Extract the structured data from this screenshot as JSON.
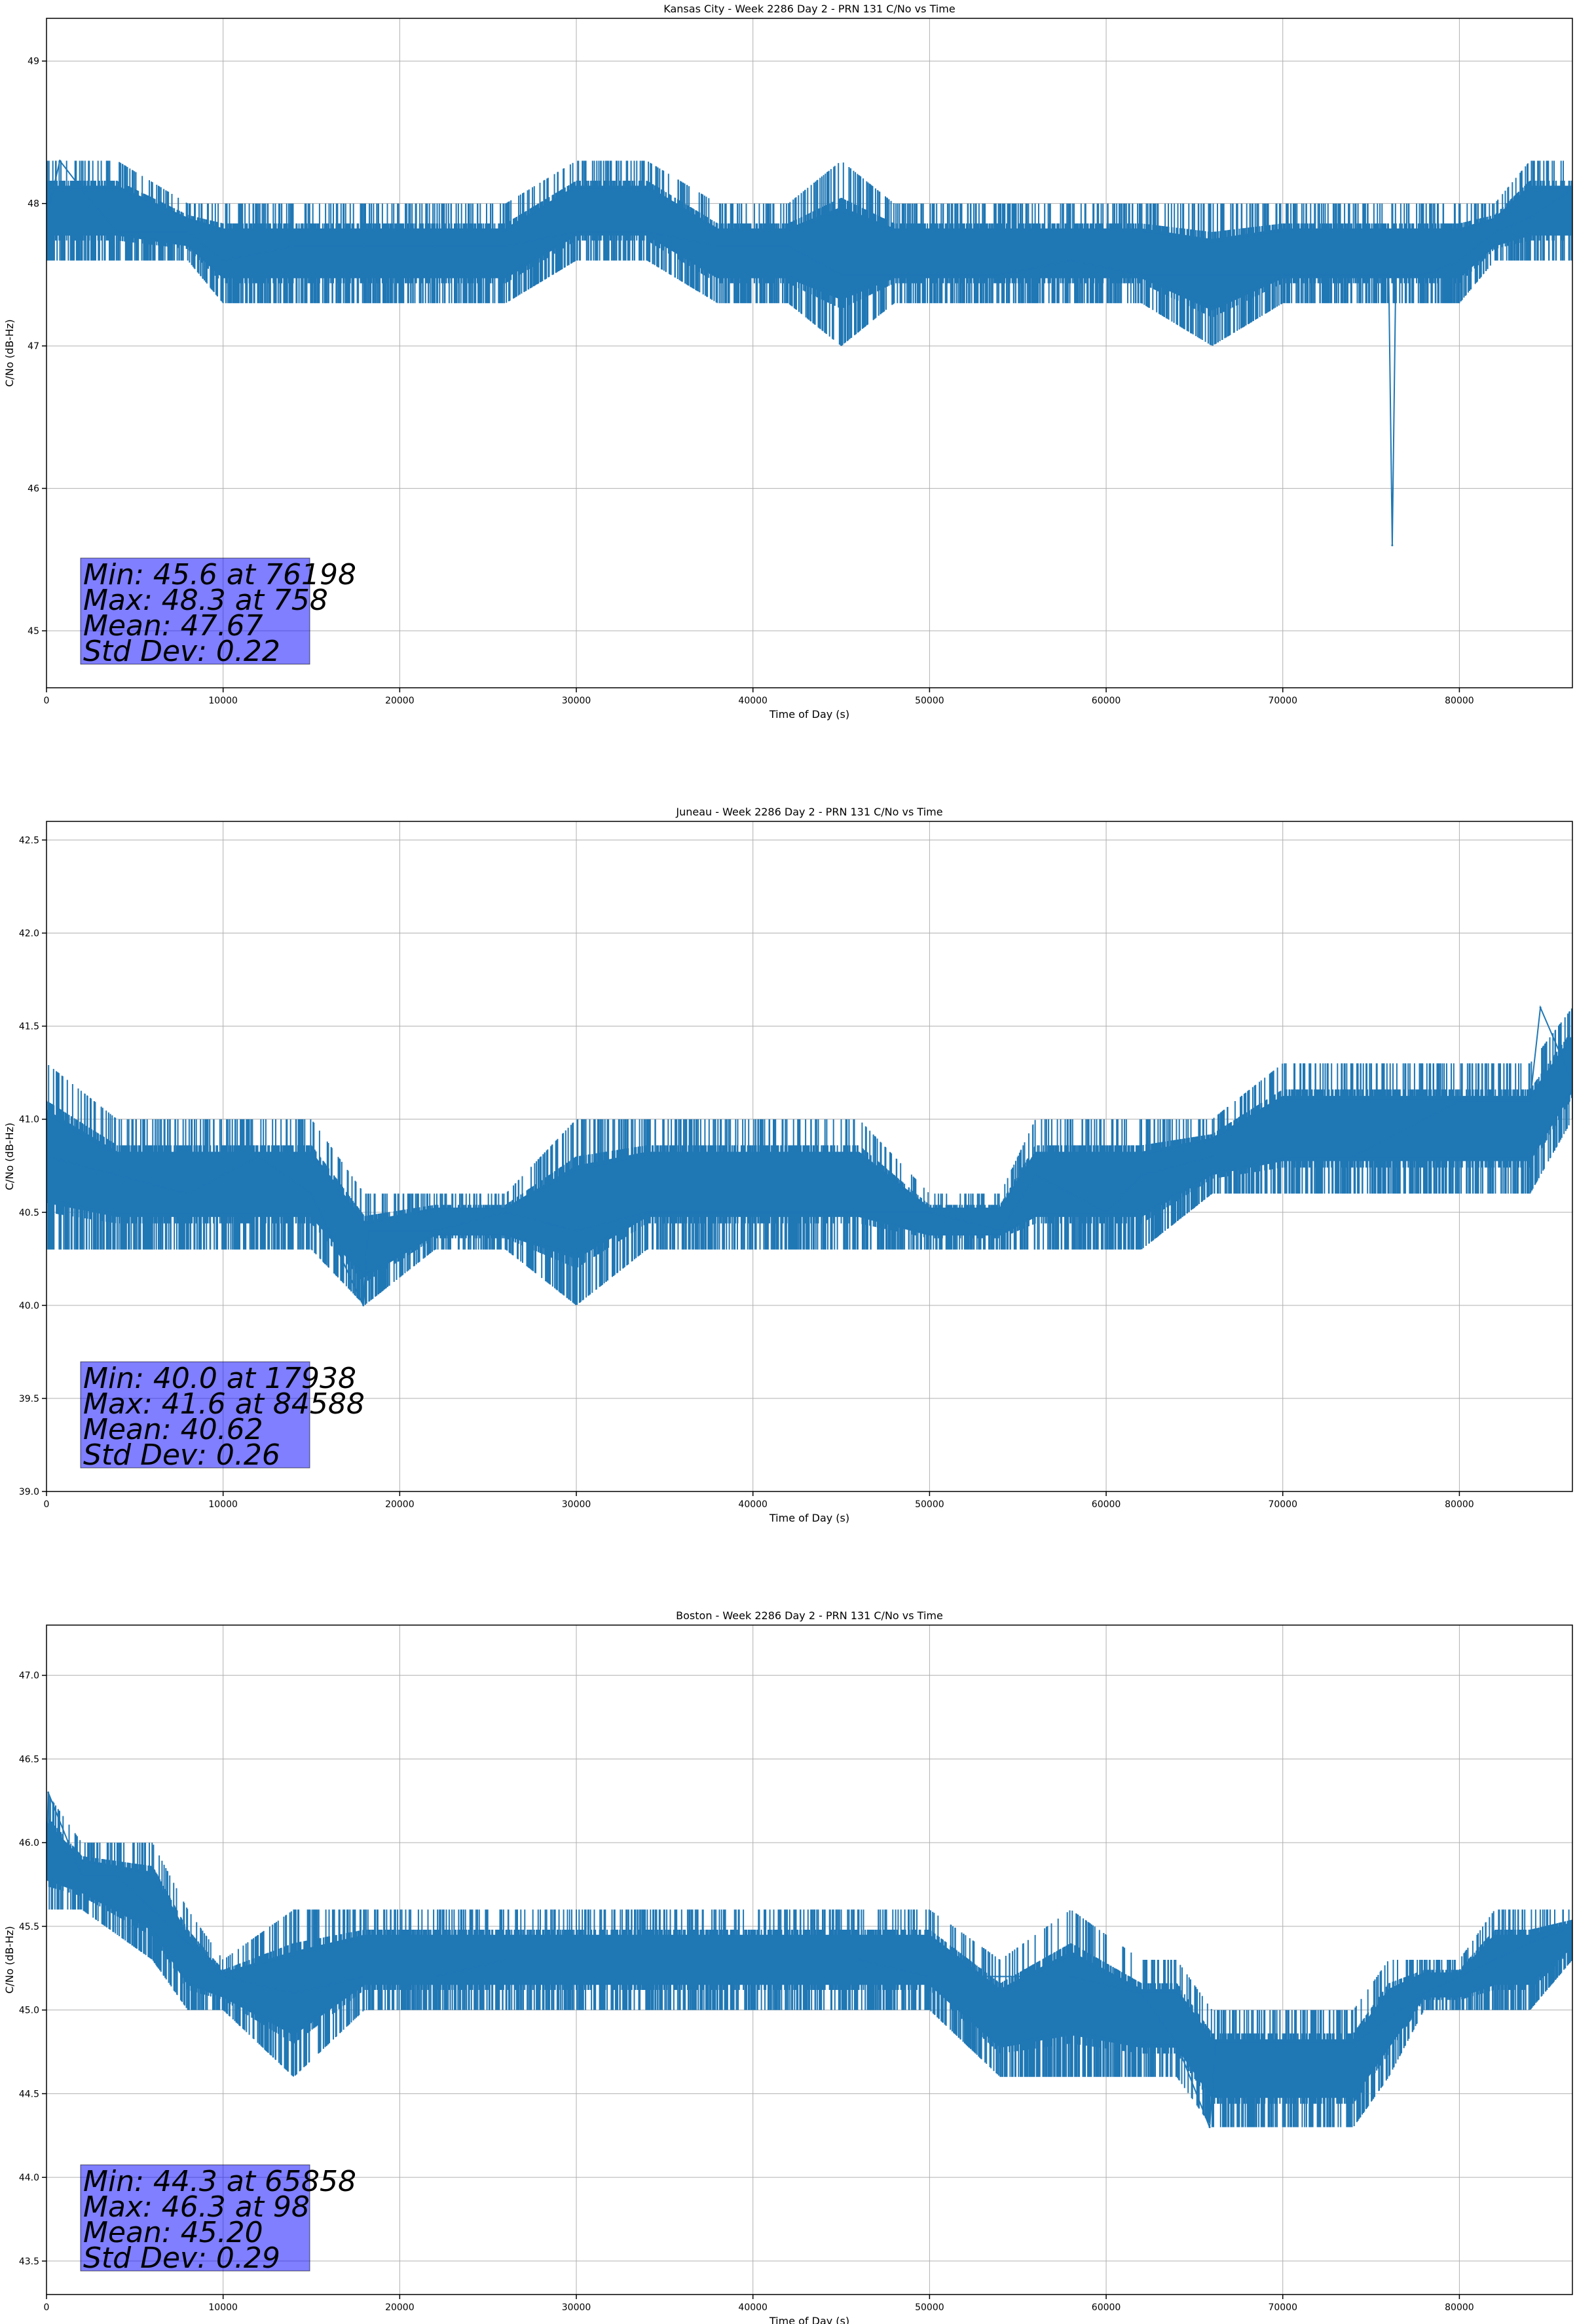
{
  "chart_data": [
    {
      "type": "line",
      "title": "Kansas City - Week 2286 Day 2 - PRN 131 C/No vs Time",
      "xlabel": "Time of Day (s)",
      "ylabel": "C/No (dB-Hz)",
      "xlim": [
        0,
        86400
      ],
      "ylim": [
        44.6,
        49.3
      ],
      "xticks": [
        0,
        10000,
        20000,
        30000,
        40000,
        50000,
        60000,
        70000,
        80000
      ],
      "yticks": [
        45,
        46,
        47,
        48,
        49
      ],
      "grid": true,
      "color": "#1f77b4",
      "series": [
        {
          "x": [
            0,
            758,
            2000,
            4000,
            6000,
            8000,
            10000,
            14000,
            18000,
            22000,
            26000,
            30000,
            34000,
            38000,
            42000,
            45000,
            48000,
            50000,
            54000,
            58000,
            62000,
            66000,
            70000,
            74000,
            76000,
            76198,
            76400,
            78000,
            80000,
            82000,
            84000,
            86400
          ],
          "y": [
            47.9,
            48.3,
            48.1,
            47.8,
            47.8,
            47.8,
            47.6,
            47.7,
            47.7,
            47.7,
            47.7,
            47.8,
            47.8,
            47.7,
            47.7,
            47.5,
            47.5,
            47.5,
            47.5,
            47.6,
            47.5,
            47.5,
            47.5,
            47.5,
            47.5,
            45.6,
            47.5,
            47.5,
            47.6,
            47.8,
            47.9,
            48.1
          ],
          "band": {
            "x": [
              0,
              2000,
              4000,
              8000,
              10000,
              14000,
              18000,
              22000,
              26000,
              30000,
              34000,
              38000,
              42000,
              45000,
              48000,
              50000,
              54000,
              58000,
              62000,
              66000,
              70000,
              74000,
              78000,
              80000,
              82000,
              84000,
              86400
            ],
            "low": [
              47.6,
              47.6,
              47.6,
              47.6,
              47.3,
              47.3,
              47.3,
              47.3,
              47.3,
              47.6,
              47.6,
              47.3,
              47.3,
              47.0,
              47.3,
              47.3,
              47.3,
              47.3,
              47.3,
              47.0,
              47.3,
              47.3,
              47.3,
              47.3,
              47.6,
              47.6,
              47.6
            ],
            "high": [
              48.3,
              48.3,
              48.3,
              48.0,
              48.0,
              48.0,
              48.0,
              48.0,
              48.0,
              48.3,
              48.3,
              48.0,
              48.0,
              48.3,
              48.0,
              48.0,
              48.0,
              48.0,
              48.0,
              48.0,
              48.0,
              48.0,
              48.0,
              48.0,
              48.0,
              48.3,
              48.3
            ]
          }
        }
      ],
      "annotation": [
        "Min: 45.6 at 76198",
        "Max: 48.3 at 758",
        "Mean: 47.67",
        "Std Dev: 0.22"
      ]
    },
    {
      "type": "line",
      "title": "Juneau - Week 2286 Day 2 - PRN 131 C/No vs Time",
      "xlabel": "Time of Day (s)",
      "ylabel": "C/No (dB-Hz)",
      "xlim": [
        0,
        86400
      ],
      "ylim": [
        39.0,
        42.6
      ],
      "xticks": [
        0,
        10000,
        20000,
        30000,
        40000,
        50000,
        60000,
        70000,
        80000
      ],
      "yticks": [
        39.0,
        39.5,
        40.0,
        40.5,
        41.0,
        41.5,
        42.0,
        42.5
      ],
      "grid": true,
      "color": "#1f77b4",
      "series": [
        {
          "x": [
            0,
            4000,
            8000,
            12000,
            15000,
            17938,
            18200,
            22000,
            26000,
            30000,
            34000,
            38000,
            42000,
            46000,
            50000,
            54000,
            56000,
            58000,
            60000,
            62000,
            66000,
            70000,
            74000,
            78000,
            80000,
            84000,
            84588,
            86400
          ],
          "y": [
            40.8,
            40.7,
            40.6,
            40.8,
            40.6,
            40.0,
            40.4,
            40.4,
            40.5,
            40.4,
            40.5,
            40.5,
            40.5,
            40.5,
            40.5,
            40.4,
            40.7,
            40.6,
            40.5,
            40.7,
            40.8,
            40.8,
            40.8,
            41.0,
            41.1,
            41.1,
            41.6,
            41.2
          ],
          "band": {
            "x": [
              0,
              4000,
              8000,
              12000,
              15000,
              18000,
              22000,
              26000,
              30000,
              34000,
              38000,
              42000,
              46000,
              50000,
              54000,
              56000,
              58000,
              60000,
              62000,
              66000,
              70000,
              74000,
              78000,
              80000,
              84000,
              86400
            ],
            "low": [
              40.3,
              40.3,
              40.3,
              40.3,
              40.3,
              40.0,
              40.3,
              40.3,
              40.0,
              40.3,
              40.3,
              40.3,
              40.3,
              40.3,
              40.3,
              40.3,
              40.3,
              40.3,
              40.3,
              40.6,
              40.6,
              40.6,
              40.6,
              40.6,
              40.6,
              41.0
            ],
            "high": [
              41.3,
              41.0,
              41.0,
              41.0,
              41.0,
              40.6,
              40.6,
              40.6,
              41.0,
              41.0,
              41.0,
              41.0,
              41.0,
              40.6,
              40.6,
              41.0,
              41.0,
              41.0,
              41.0,
              41.0,
              41.3,
              41.3,
              41.3,
              41.3,
              41.3,
              41.6
            ]
          }
        }
      ],
      "annotation": [
        "Min: 40.0 at 17938",
        "Max: 41.6 at 84588",
        "Mean: 40.62",
        "Std Dev: 0.26"
      ]
    },
    {
      "type": "line",
      "title": "Boston - Week 2286 Day 2 - PRN 131 C/No vs Time",
      "xlabel": "Time of Day (s)",
      "ylabel": "C/No (dB-Hz)",
      "xlim": [
        0,
        86400
      ],
      "ylim": [
        43.3,
        47.3
      ],
      "xticks": [
        0,
        10000,
        20000,
        30000,
        40000,
        50000,
        60000,
        70000,
        80000
      ],
      "yticks": [
        43.5,
        44.0,
        44.5,
        45.0,
        45.5,
        46.0,
        46.5,
        47.0
      ],
      "grid": true,
      "color": "#1f77b4",
      "series": [
        {
          "x": [
            0,
            98,
            2000,
            4000,
            6000,
            8000,
            10000,
            14000,
            18000,
            22000,
            26000,
            30000,
            34000,
            38000,
            42000,
            46000,
            50000,
            54000,
            58000,
            62000,
            64000,
            65858,
            66200,
            70000,
            74000,
            78000,
            80000,
            82000,
            84000,
            86400
          ],
          "y": [
            45.8,
            46.3,
            45.8,
            45.8,
            45.6,
            45.4,
            45.2,
            45.1,
            45.2,
            45.2,
            45.3,
            45.3,
            45.3,
            45.3,
            45.3,
            45.3,
            45.2,
            45.2,
            45.2,
            45.1,
            44.8,
            44.3,
            44.8,
            44.8,
            44.8,
            45.1,
            45.2,
            45.3,
            45.4,
            45.5
          ],
          "band": {
            "x": [
              0,
              2000,
              6000,
              8000,
              10000,
              14000,
              18000,
              22000,
              26000,
              30000,
              34000,
              38000,
              42000,
              46000,
              50000,
              54000,
              58000,
              62000,
              64000,
              66000,
              70000,
              74000,
              76000,
              78000,
              80000,
              82000,
              84000,
              86400
            ],
            "low": [
              45.6,
              45.6,
              45.3,
              45.0,
              45.0,
              44.6,
              45.0,
              45.0,
              45.0,
              45.0,
              45.0,
              45.0,
              45.0,
              45.0,
              45.0,
              44.6,
              44.6,
              44.6,
              44.6,
              44.3,
              44.3,
              44.3,
              44.6,
              45.0,
              45.0,
              45.0,
              45.0,
              45.3
            ],
            "high": [
              46.3,
              46.0,
              46.0,
              45.6,
              45.3,
              45.6,
              45.6,
              45.6,
              45.6,
              45.6,
              45.6,
              45.6,
              45.6,
              45.6,
              45.6,
              45.3,
              45.6,
              45.3,
              45.3,
              45.0,
              45.0,
              45.0,
              45.3,
              45.3,
              45.3,
              45.6,
              45.6,
              45.6
            ]
          }
        }
      ],
      "annotation": [
        "Min: 44.3 at 65858",
        "Max: 46.3 at 98",
        "Mean: 45.20",
        "Std Dev: 0.29"
      ]
    }
  ]
}
